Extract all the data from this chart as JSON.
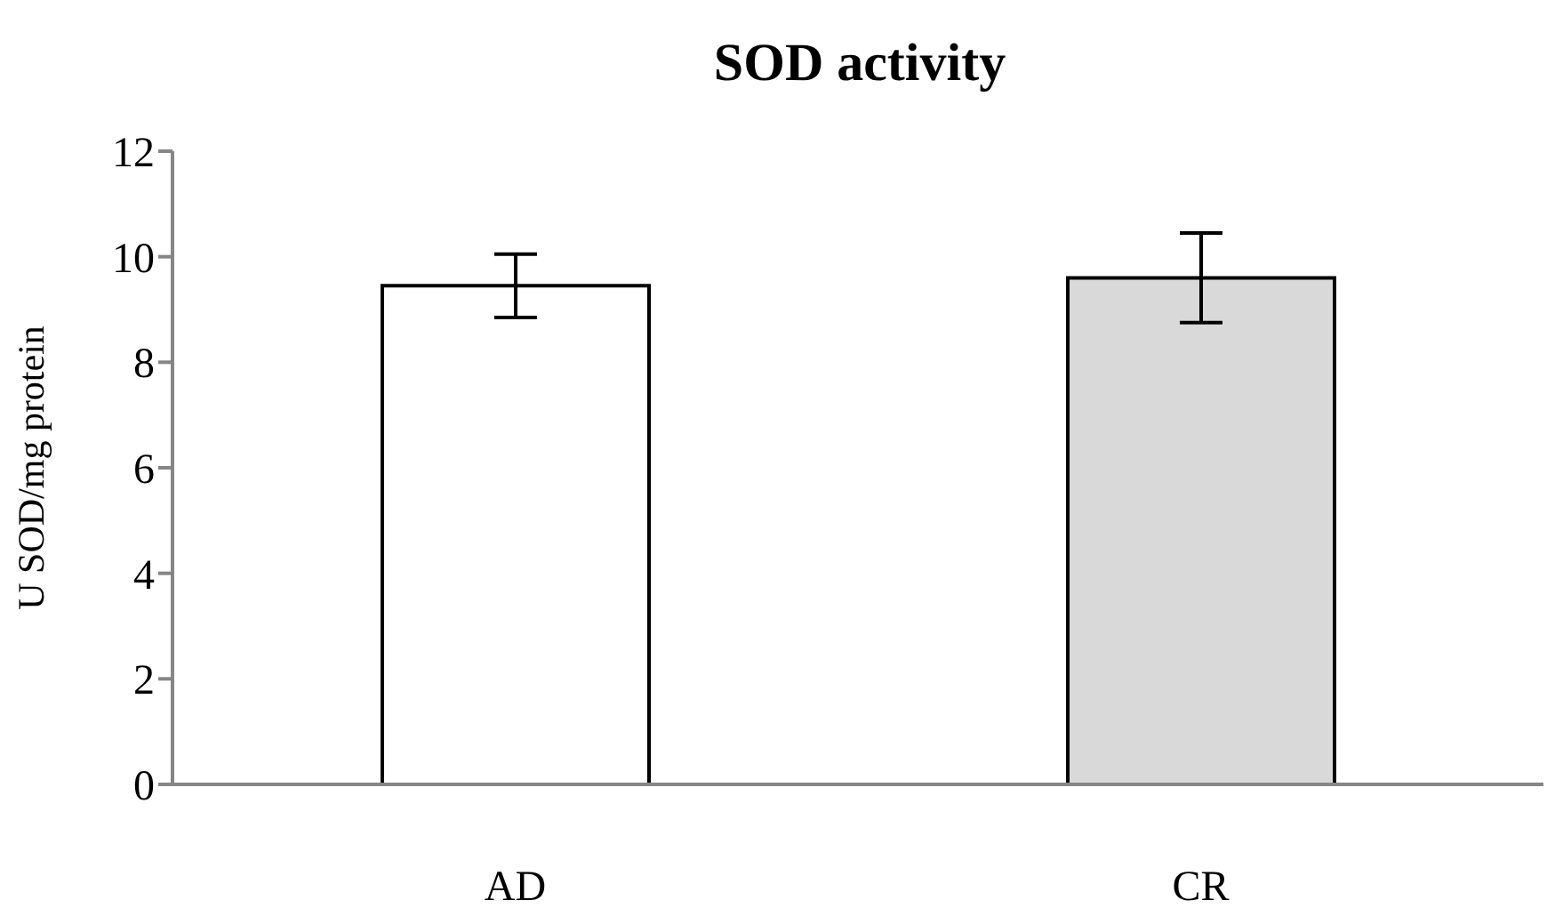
{
  "chart_data": {
    "type": "bar",
    "title": "SOD activity",
    "ylabel": "U SOD/mg protein",
    "categories": [
      "AD",
      "CR"
    ],
    "values": [
      9.45,
      9.6
    ],
    "colors": [
      "#ffffff",
      "#d9d9d9"
    ],
    "errors": [
      0.6,
      0.85
    ],
    "ylim": [
      0,
      12
    ],
    "yticks": [
      0,
      2,
      4,
      6,
      8,
      10,
      12
    ],
    "grid": false,
    "legend": false
  }
}
